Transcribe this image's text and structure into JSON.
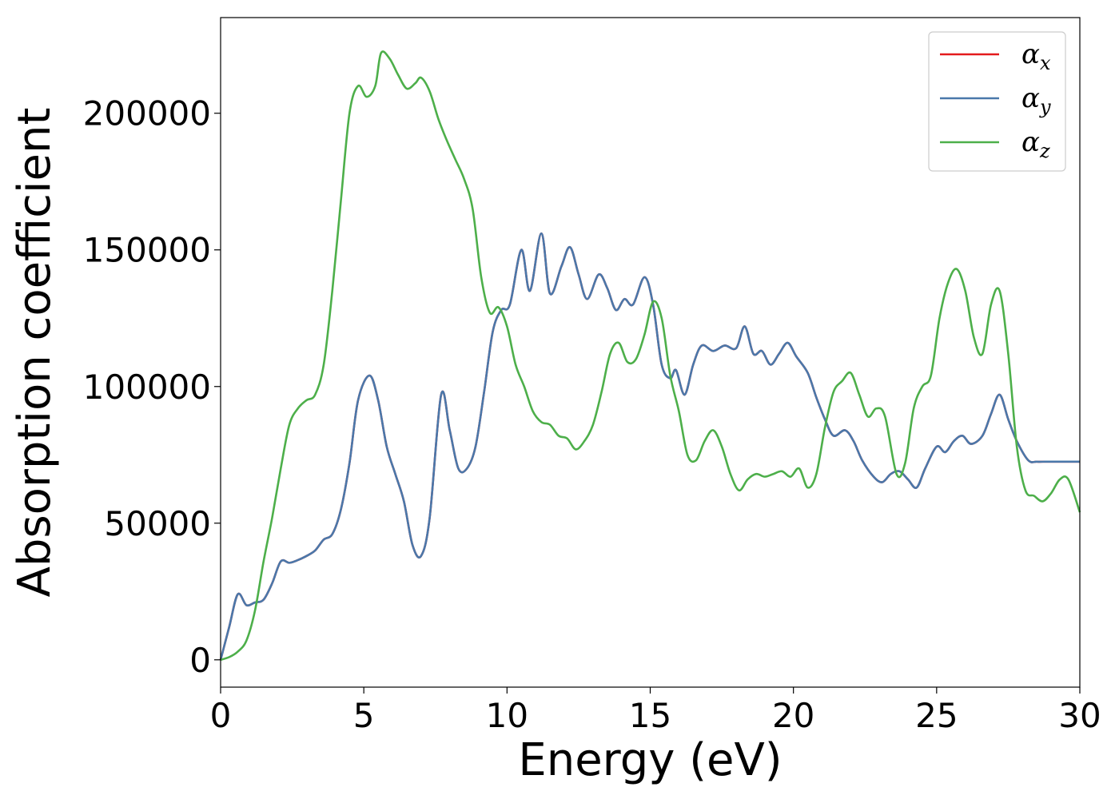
{
  "chart_data": {
    "type": "line",
    "title": "",
    "xlabel": "Energy (eV)",
    "ylabel": "Absorption coefficient",
    "xlim": [
      0,
      30
    ],
    "ylim": [
      -10000,
      235000
    ],
    "xticks": [
      0,
      5,
      10,
      15,
      20,
      25,
      30
    ],
    "xtick_labels": [
      "0",
      "5",
      "10",
      "15",
      "20",
      "25",
      "30"
    ],
    "yticks": [
      0,
      50000,
      100000,
      150000,
      200000
    ],
    "ytick_labels": [
      "0",
      "50000",
      "100000",
      "150000",
      "200000"
    ],
    "grid": false,
    "legend_position": "top-right",
    "series": [
      {
        "name": "αx",
        "symbol": "α",
        "subscript": "x",
        "color": "#e41a1c",
        "x": [
          0,
          0.3,
          0.6,
          0.9,
          1.2,
          1.5,
          1.8,
          2.1,
          2.4,
          2.7,
          3.0,
          3.3,
          3.6,
          3.9,
          4.2,
          4.5,
          4.8,
          5.2,
          5.5,
          5.8,
          6.1,
          6.4,
          6.7,
          7.0,
          7.3,
          7.7,
          8.0,
          8.3,
          8.6,
          8.9,
          9.2,
          9.5,
          9.8,
          10.1,
          10.5,
          10.8,
          11.2,
          11.5,
          11.9,
          12.2,
          12.5,
          12.8,
          13.2,
          13.5,
          13.8,
          14.1,
          14.4,
          14.8,
          15.1,
          15.4,
          15.7,
          15.9,
          16.2,
          16.5,
          16.8,
          17.2,
          17.6,
          18.0,
          18.3,
          18.6,
          18.9,
          19.2,
          19.5,
          19.8,
          20.1,
          20.5,
          20.8,
          21.1,
          21.4,
          21.8,
          22.1,
          22.4,
          22.8,
          23.1,
          23.4,
          23.7,
          24.0,
          24.3,
          24.6,
          25.0,
          25.3,
          25.6,
          25.9,
          26.2,
          26.6,
          26.9,
          27.2,
          27.5,
          27.8,
          28.2,
          28.5,
          28.8,
          29.1,
          29.4,
          29.7,
          30.0
        ],
        "values": [
          0,
          12000,
          24000,
          20000,
          21000,
          22000,
          28000,
          36000,
          35500,
          36500,
          38000,
          40000,
          44000,
          46000,
          55000,
          72000,
          95000,
          104000,
          95000,
          78000,
          68000,
          58000,
          42000,
          38000,
          52000,
          97000,
          84000,
          70000,
          70000,
          78000,
          98000,
          120000,
          128000,
          130000,
          150000,
          135000,
          156000,
          134000,
          144000,
          151000,
          141000,
          132000,
          141000,
          136000,
          128000,
          132000,
          130000,
          140000,
          130000,
          108000,
          103000,
          106000,
          97000,
          108000,
          115000,
          113000,
          115000,
          114000,
          122000,
          112000,
          113000,
          108000,
          112000,
          116000,
          111000,
          105000,
          96000,
          88000,
          82000,
          84000,
          80000,
          73000,
          67000,
          65000,
          68000,
          69000,
          66000,
          63000,
          70000,
          78000,
          76000,
          80000,
          82000,
          79000,
          82000,
          90000,
          97000,
          88000,
          80000,
          73000,
          72500,
          72500,
          72500,
          72500,
          72500,
          72500
        ]
      },
      {
        "name": "αy",
        "symbol": "α",
        "subscript": "y",
        "color": "#4a78aa",
        "x": [
          0,
          0.3,
          0.6,
          0.9,
          1.2,
          1.5,
          1.8,
          2.1,
          2.4,
          2.7,
          3.0,
          3.3,
          3.6,
          3.9,
          4.2,
          4.5,
          4.8,
          5.2,
          5.5,
          5.8,
          6.1,
          6.4,
          6.7,
          7.0,
          7.3,
          7.7,
          8.0,
          8.3,
          8.6,
          8.9,
          9.2,
          9.5,
          9.8,
          10.1,
          10.5,
          10.8,
          11.2,
          11.5,
          11.9,
          12.2,
          12.5,
          12.8,
          13.2,
          13.5,
          13.8,
          14.1,
          14.4,
          14.8,
          15.1,
          15.4,
          15.7,
          15.9,
          16.2,
          16.5,
          16.8,
          17.2,
          17.6,
          18.0,
          18.3,
          18.6,
          18.9,
          19.2,
          19.5,
          19.8,
          20.1,
          20.5,
          20.8,
          21.1,
          21.4,
          21.8,
          22.1,
          22.4,
          22.8,
          23.1,
          23.4,
          23.7,
          24.0,
          24.3,
          24.6,
          25.0,
          25.3,
          25.6,
          25.9,
          26.2,
          26.6,
          26.9,
          27.2,
          27.5,
          27.8,
          28.2,
          28.5,
          28.8,
          29.1,
          29.4,
          29.7,
          30.0
        ],
        "values": [
          0,
          12000,
          24000,
          20000,
          21000,
          22000,
          28000,
          36000,
          35500,
          36500,
          38000,
          40000,
          44000,
          46000,
          55000,
          72000,
          95000,
          104000,
          95000,
          78000,
          68000,
          58000,
          42000,
          38000,
          52000,
          97000,
          84000,
          70000,
          70000,
          78000,
          98000,
          120000,
          128000,
          130000,
          150000,
          135000,
          156000,
          134000,
          144000,
          151000,
          141000,
          132000,
          141000,
          136000,
          128000,
          132000,
          130000,
          140000,
          130000,
          108000,
          103000,
          106000,
          97000,
          108000,
          115000,
          113000,
          115000,
          114000,
          122000,
          112000,
          113000,
          108000,
          112000,
          116000,
          111000,
          105000,
          96000,
          88000,
          82000,
          84000,
          80000,
          73000,
          67000,
          65000,
          68000,
          69000,
          66000,
          63000,
          70000,
          78000,
          76000,
          80000,
          82000,
          79000,
          82000,
          90000,
          97000,
          88000,
          80000,
          73000,
          72500,
          72500,
          72500,
          72500,
          72500,
          72500
        ]
      },
      {
        "name": "αz",
        "symbol": "α",
        "subscript": "z",
        "color": "#4daf4a",
        "x": [
          0,
          0.3,
          0.6,
          0.9,
          1.2,
          1.5,
          1.8,
          2.1,
          2.4,
          2.7,
          3.0,
          3.3,
          3.6,
          3.9,
          4.2,
          4.5,
          4.8,
          5.1,
          5.4,
          5.6,
          5.9,
          6.2,
          6.5,
          6.8,
          7.0,
          7.3,
          7.6,
          7.9,
          8.2,
          8.5,
          8.8,
          9.1,
          9.4,
          9.7,
          10.0,
          10.3,
          10.6,
          10.9,
          11.2,
          11.5,
          11.8,
          12.1,
          12.4,
          12.7,
          13.0,
          13.3,
          13.6,
          13.9,
          14.2,
          14.5,
          14.8,
          15.1,
          15.4,
          15.7,
          16.0,
          16.3,
          16.6,
          16.9,
          17.2,
          17.5,
          17.8,
          18.1,
          18.4,
          18.7,
          19.0,
          19.3,
          19.6,
          19.9,
          20.2,
          20.5,
          20.8,
          21.1,
          21.4,
          21.7,
          22.0,
          22.3,
          22.6,
          22.9,
          23.2,
          23.6,
          23.9,
          24.2,
          24.5,
          24.8,
          25.1,
          25.4,
          25.7,
          26.0,
          26.3,
          26.6,
          26.9,
          27.2,
          27.5,
          27.8,
          28.1,
          28.4,
          28.7,
          29.0,
          29.3,
          29.6,
          30.0
        ],
        "values": [
          0,
          1000,
          3000,
          7000,
          18000,
          36000,
          52000,
          70000,
          86000,
          92000,
          95000,
          97000,
          108000,
          135000,
          168000,
          200000,
          210000,
          206000,
          210000,
          222000,
          220000,
          214000,
          209000,
          211000,
          213000,
          208000,
          198000,
          190000,
          183000,
          176000,
          165000,
          140000,
          127000,
          129000,
          122000,
          108000,
          100000,
          91000,
          87000,
          86000,
          82000,
          81000,
          77000,
          80000,
          86000,
          98000,
          112000,
          116000,
          109000,
          110000,
          119000,
          131000,
          125000,
          104000,
          91000,
          75000,
          73000,
          80000,
          84000,
          78000,
          68000,
          62000,
          66000,
          68000,
          67000,
          68000,
          69000,
          67000,
          70000,
          63000,
          68000,
          85000,
          98000,
          102000,
          105000,
          97000,
          89000,
          92000,
          89000,
          68000,
          72000,
          92000,
          100000,
          104000,
          125000,
          138000,
          143000,
          135000,
          118000,
          112000,
          130000,
          135000,
          112000,
          78000,
          62000,
          60000,
          58000,
          61000,
          66000,
          66000,
          54000
        ]
      }
    ]
  }
}
